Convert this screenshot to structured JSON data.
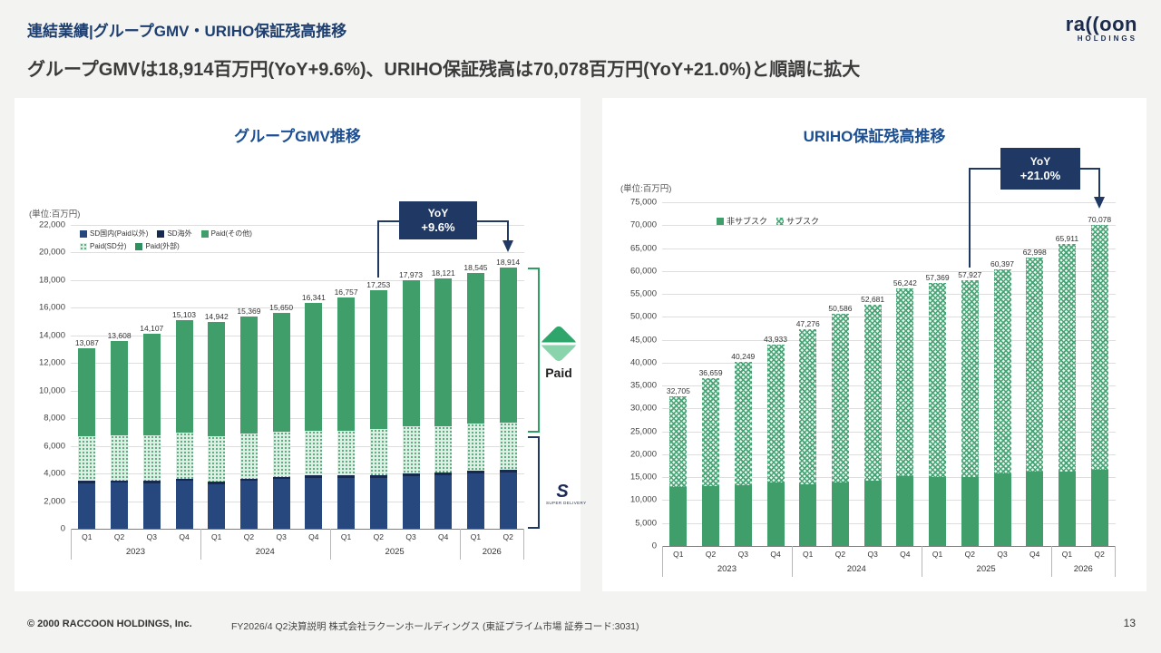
{
  "page": {
    "title": "連結業績|グループGMV・URIHO保証残高推移",
    "subtitle": "グループGMVは18,914百万円(YoY+9.6%)、URIHO保証残高は70,078百万円(YoY+21.0%)と順調に拡大",
    "footer_left": "© 2000 RACCOON HOLDINGS, Inc.",
    "footer_center": "FY2026/4 Q2決算説明 株式会社ラクーンホールディングス (東証プライム市場 証券コード:3031)",
    "page_number": "13"
  },
  "brand": {
    "name": "ra((oon",
    "sub": "HOLDINGS"
  },
  "logos": {
    "paid": "Paid",
    "sd_mark": "S",
    "sd_caption": "SUPER DELIVERY"
  },
  "chart_data": [
    {
      "type": "bar",
      "stacked": true,
      "title": "グループGMV推移",
      "unit_label": "(単位:百万円)",
      "yoy": {
        "label": "YoY",
        "value": "+9.6%"
      },
      "categories": [
        "Q1",
        "Q2",
        "Q3",
        "Q4",
        "Q1",
        "Q2",
        "Q3",
        "Q4",
        "Q1",
        "Q2",
        "Q3",
        "Q4",
        "Q1",
        "Q2"
      ],
      "year_groups": [
        {
          "label": "2023",
          "span": 4
        },
        {
          "label": "2024",
          "span": 4
        },
        {
          "label": "2025",
          "span": 4
        },
        {
          "label": "2026",
          "span": 2
        }
      ],
      "legend_rows": [
        [
          {
            "name": "SD国内(Paid以外)",
            "swatch": "navy"
          },
          {
            "name": "SD海外",
            "swatch": "navy-dark"
          },
          {
            "name": "Paid(その他)",
            "swatch": "green"
          }
        ],
        [
          {
            "name": "Paid(SD分)",
            "swatch": "pattern-dots"
          },
          {
            "name": "Paid(外部)",
            "swatch": "green2"
          }
        ]
      ],
      "series": [
        {
          "name": "SD国内(Paid以外)",
          "swatch": "navy",
          "values": [
            3300,
            3350,
            3300,
            3450,
            3250,
            3450,
            3600,
            3700,
            3650,
            3700,
            3800,
            3900,
            4000,
            4100
          ]
        },
        {
          "name": "SD海外",
          "swatch": "navy-dark",
          "values": [
            150,
            150,
            150,
            150,
            150,
            150,
            150,
            150,
            200,
            200,
            200,
            200,
            200,
            200
          ]
        },
        {
          "name": "Paid(SD分)",
          "swatch": "pattern-dots",
          "values": [
            3250,
            3250,
            3300,
            3350,
            3300,
            3300,
            3250,
            3250,
            3250,
            3300,
            3400,
            3350,
            3400,
            3400
          ]
        },
        {
          "name": "Paid(外部)・Paid(その他)",
          "swatch": "green",
          "values": [
            6387,
            6858,
            7357,
            8153,
            8242,
            8469,
            8650,
            9241,
            9657,
            10053,
            10573,
            10671,
            10945,
            11214
          ]
        }
      ],
      "totals": [
        13087,
        13608,
        14107,
        15103,
        14942,
        15369,
        15650,
        16341,
        16757,
        17253,
        17973,
        18121,
        18545,
        18914
      ],
      "total_labels": [
        "13,087",
        "13,608",
        "14,107",
        "15,103",
        "14,942",
        "15,369",
        "15,650",
        "16,341",
        "16,757",
        "17,253",
        "17,973",
        "18,121",
        "18,545",
        "18,914"
      ],
      "ylim": [
        0,
        22000
      ],
      "ytick_labels": [
        "0",
        "2,000",
        "4,000",
        "6,000",
        "8,000",
        "10,000",
        "12,000",
        "14,000",
        "16,000",
        "18,000",
        "20,000",
        "22,000"
      ]
    },
    {
      "type": "bar",
      "stacked": true,
      "title": "URIHO保証残高推移",
      "unit_label": "(単位:百万円)",
      "yoy": {
        "label": "YoY",
        "value": "+21.0%"
      },
      "categories": [
        "Q1",
        "Q2",
        "Q3",
        "Q4",
        "Q1",
        "Q2",
        "Q3",
        "Q4",
        "Q1",
        "Q2",
        "Q3",
        "Q4",
        "Q1",
        "Q2"
      ],
      "year_groups": [
        {
          "label": "2023",
          "span": 4
        },
        {
          "label": "2024",
          "span": 4
        },
        {
          "label": "2025",
          "span": 4
        },
        {
          "label": "2026",
          "span": 2
        }
      ],
      "legend_rows": [
        [
          {
            "name": "非サブスク",
            "swatch": "green"
          },
          {
            "name": "サブスク",
            "swatch": "pattern-weave"
          }
        ]
      ],
      "series": [
        {
          "name": "非サブスク",
          "swatch": "green",
          "values": [
            12800,
            13000,
            13300,
            13900,
            13500,
            13800,
            14300,
            15300,
            15100,
            15000,
            15800,
            16200,
            16300,
            16700
          ]
        },
        {
          "name": "サブスク",
          "swatch": "pattern-weave",
          "values": [
            19905,
            23659,
            26949,
            30033,
            33776,
            36786,
            38381,
            40942,
            42269,
            42927,
            44597,
            46798,
            49611,
            53378
          ]
        }
      ],
      "totals": [
        32705,
        36659,
        40249,
        43933,
        47276,
        50586,
        52681,
        56242,
        57369,
        57927,
        60397,
        62998,
        65911,
        70078
      ],
      "total_labels": [
        "32,705",
        "36,659",
        "40,249",
        "43,933",
        "47,276",
        "50,586",
        "52,681",
        "56,242",
        "57,369",
        "57,927",
        "60,397",
        "62,998",
        "65,911",
        "70,078"
      ],
      "ylim": [
        0,
        75000
      ],
      "ytick_labels": [
        "0",
        "5,000",
        "10,000",
        "15,000",
        "20,000",
        "25,000",
        "30,000",
        "35,000",
        "40,000",
        "45,000",
        "50,000",
        "55,000",
        "60,000",
        "65,000",
        "70,000",
        "75,000"
      ]
    }
  ]
}
